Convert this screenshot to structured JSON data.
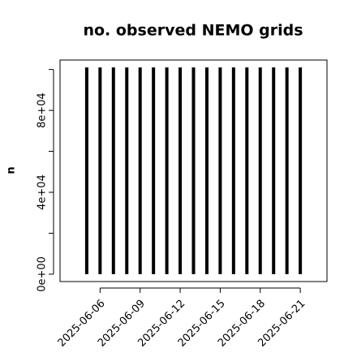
{
  "chart_data": {
    "type": "bar",
    "title": "no. observed NEMO grids",
    "y_label": "n",
    "x": [
      "2025-06-05",
      "2025-06-06",
      "2025-06-07",
      "2025-06-08",
      "2025-06-09",
      "2025-06-10",
      "2025-06-11",
      "2025-06-12",
      "2025-06-13",
      "2025-06-14",
      "2025-06-15",
      "2025-06-16",
      "2025-06-17",
      "2025-06-18",
      "2025-06-19",
      "2025-06-20",
      "2025-06-21"
    ],
    "values": [
      101000,
      101000,
      101000,
      101000,
      101000,
      101000,
      101000,
      101000,
      101000,
      101000,
      101000,
      101000,
      101000,
      101000,
      101000,
      101000,
      101000
    ],
    "color": "#000000",
    "xlim": [
      "2025-06-03",
      "2025-06-23"
    ],
    "xticks": [
      "2025-06-06",
      "2025-06-09",
      "2025-06-12",
      "2025-06-15",
      "2025-06-18",
      "2025-06-21"
    ],
    "ylim": [
      -3600,
      104600
    ],
    "yticks": [
      {
        "value": 0,
        "label": "0e+00"
      },
      {
        "value": 20000,
        "label": null
      },
      {
        "value": 40000,
        "label": "4e+04"
      },
      {
        "value": 60000,
        "label": null
      },
      {
        "value": 80000,
        "label": "8e+04"
      },
      {
        "value": 100000,
        "label": null
      }
    ]
  }
}
